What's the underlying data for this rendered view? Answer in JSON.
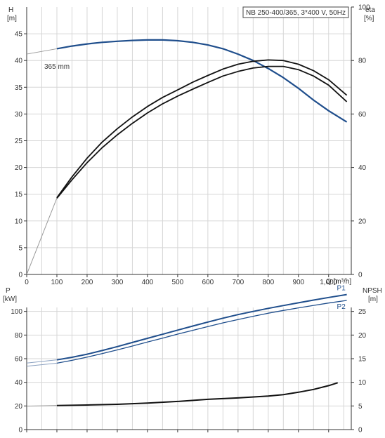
{
  "chart_data": [
    {
      "panel": "head-efficiency",
      "type": "line",
      "title": "NB 250-400/365, 3*400 V, 50Hz",
      "left_axis": {
        "label_lines": [
          "H",
          "[m]"
        ],
        "ylim": [
          0,
          50
        ],
        "ticks": [
          0,
          5,
          10,
          15,
          20,
          25,
          30,
          35,
          40,
          45
        ]
      },
      "right_axis": {
        "label_lines": [
          "eta",
          "[%]"
        ],
        "ylim": [
          0,
          100
        ],
        "ticks": [
          0,
          20,
          40,
          60,
          80,
          100
        ]
      },
      "x_axis": {
        "label": "Q [m³/h]",
        "xlim": [
          0,
          1075
        ],
        "ticks": [
          0,
          100,
          200,
          300,
          400,
          500,
          600,
          700,
          800,
          900,
          1000
        ],
        "tick_labels": [
          "0",
          "100",
          "200",
          "300",
          "400",
          "500",
          "600",
          "700",
          "800",
          "900",
          "1,000"
        ]
      },
      "grid": true,
      "annotations": [
        "365 mm"
      ],
      "series": [
        {
          "id": "H",
          "axis": "left",
          "x": [
            100,
            150,
            200,
            250,
            300,
            350,
            400,
            450,
            500,
            550,
            600,
            650,
            700,
            750,
            800,
            850,
            900,
            950,
            1000,
            1060
          ],
          "y": [
            42.2,
            42.7,
            43.1,
            43.4,
            43.6,
            43.75,
            43.85,
            43.85,
            43.7,
            43.4,
            42.9,
            42.2,
            41.2,
            40.0,
            38.5,
            36.8,
            34.8,
            32.6,
            30.6,
            28.5
          ],
          "color": "#1f4e8c"
        },
        {
          "id": "eta-upper",
          "axis": "right",
          "x": [
            100,
            150,
            200,
            250,
            300,
            350,
            400,
            450,
            500,
            550,
            600,
            650,
            700,
            750,
            800,
            850,
            900,
            950,
            1000,
            1060
          ],
          "y": [
            28.7,
            36.5,
            43.5,
            49.5,
            54.5,
            58.9,
            62.8,
            66.2,
            69.0,
            71.9,
            74.4,
            76.8,
            78.6,
            79.7,
            80.2,
            80.0,
            78.6,
            76.2,
            72.8,
            67.0
          ],
          "color": "#111111"
        },
        {
          "id": "eta-lower",
          "axis": "right",
          "x": [
            100,
            150,
            200,
            250,
            300,
            350,
            400,
            450,
            500,
            550,
            600,
            650,
            700,
            750,
            800,
            850,
            900,
            950,
            1000,
            1060
          ],
          "y": [
            28.5,
            35.4,
            41.8,
            47.4,
            52.2,
            56.5,
            60.4,
            63.8,
            66.7,
            69.3,
            71.8,
            74.2,
            75.9,
            77.2,
            77.8,
            77.8,
            76.6,
            74.2,
            70.8,
            64.6
          ],
          "color": "#111111"
        }
      ]
    },
    {
      "panel": "power-npsh",
      "type": "line",
      "left_axis": {
        "label_lines": [
          "P",
          "[kW]"
        ],
        "ylim": [
          0,
          120
        ],
        "ticks": [
          0,
          20,
          40,
          60,
          80,
          100
        ]
      },
      "right_axis": {
        "label_lines": [
          "NPSH",
          "[m]"
        ],
        "ylim": [
          0,
          30
        ],
        "ticks": [
          0,
          5,
          10,
          15,
          20,
          25
        ]
      },
      "x_axis": {
        "xlim": [
          0,
          1075
        ],
        "ticks": [
          0,
          100,
          200,
          300,
          400,
          500,
          600,
          700,
          800,
          900,
          1000
        ]
      },
      "grid": true,
      "series": [
        {
          "name": "P1",
          "axis": "left",
          "x": [
            100,
            150,
            200,
            250,
            300,
            350,
            400,
            450,
            500,
            550,
            600,
            650,
            700,
            750,
            800,
            850,
            900,
            950,
            1000,
            1060
          ],
          "y": [
            59.0,
            61.2,
            63.8,
            66.9,
            70.2,
            73.7,
            77.2,
            80.7,
            84.2,
            87.6,
            91.0,
            94.3,
            97.3,
            100.0,
            102.6,
            105.0,
            107.3,
            109.6,
            111.8,
            114.3
          ],
          "color": "#1f4e8c"
        },
        {
          "name": "P2",
          "axis": "left",
          "x": [
            100,
            150,
            200,
            250,
            300,
            350,
            400,
            450,
            500,
            550,
            600,
            650,
            700,
            750,
            800,
            850,
            900,
            950,
            1000,
            1060
          ],
          "y": [
            56.2,
            58.6,
            61.3,
            64.3,
            67.4,
            70.7,
            74.1,
            77.4,
            80.8,
            84.0,
            87.2,
            90.3,
            93.1,
            95.9,
            98.5,
            100.8,
            103.0,
            105.1,
            107.1,
            109.3
          ],
          "color": "#1f4e8c"
        },
        {
          "id": "NPSH",
          "axis": "right",
          "x": [
            100,
            200,
            300,
            400,
            500,
            600,
            700,
            800,
            850,
            900,
            950,
            1000,
            1030
          ],
          "y": [
            5.1,
            5.2,
            5.35,
            5.6,
            5.95,
            6.4,
            6.7,
            7.1,
            7.4,
            7.9,
            8.5,
            9.3,
            9.9
          ],
          "color": "#111111"
        }
      ]
    }
  ]
}
